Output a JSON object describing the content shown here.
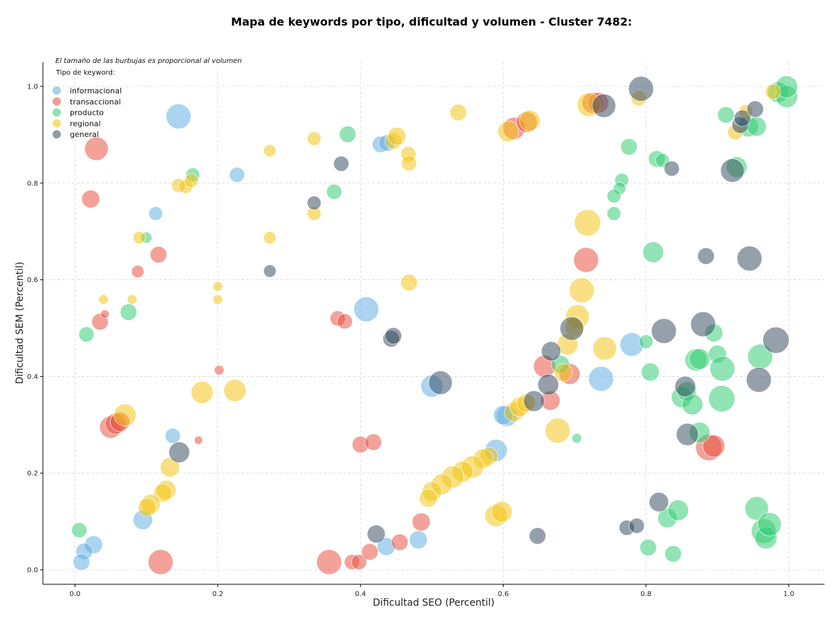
{
  "chart_data": {
    "type": "scatter",
    "title": "Mapa de keywords por tipo, dificultad y volumen - Cluster 7482:",
    "xlabel": "Dificultad SEO (Percentil)",
    "ylabel": "Dificultad SEM (Percentil)",
    "xlim": [
      -0.045,
      1.05
    ],
    "ylim": [
      -0.03,
      1.05
    ],
    "x_ticks": [
      "0.0",
      "0.2",
      "0.4",
      "0.6",
      "0.8",
      "1.0"
    ],
    "y_ticks": [
      "0.0",
      "0.2",
      "0.4",
      "0.6",
      "0.8",
      "1.0"
    ],
    "grid": true,
    "note": "El tamaño de las burbujas es proporcional al volumen",
    "legend": {
      "title": "Tipo de keyword:",
      "placement": "top-left",
      "entries": [
        {
          "name": "informacional",
          "color": "#5dade2"
        },
        {
          "name": "transaccional",
          "color": "#e74c3c"
        },
        {
          "name": "producto",
          "color": "#2ecc71"
        },
        {
          "name": "regional",
          "color": "#f1c40f"
        },
        {
          "name": "general",
          "color": "#34495e"
        }
      ]
    },
    "series": [
      {
        "name": "informacional",
        "color": "#5dade2",
        "points": [
          [
            0.145,
            0.938,
            18
          ],
          [
            0.227,
            0.817,
            11
          ],
          [
            0.113,
            0.737,
            10
          ],
          [
            0.408,
            0.539,
            18
          ],
          [
            0.428,
            0.88,
            12
          ],
          [
            0.437,
            0.883,
            12
          ],
          [
            0.5,
            0.38,
            16
          ],
          [
            0.605,
            0.318,
            15
          ],
          [
            0.59,
            0.247,
            16
          ],
          [
            0.481,
            0.062,
            13
          ],
          [
            0.436,
            0.048,
            13
          ],
          [
            0.137,
            0.277,
            11
          ],
          [
            0.095,
            0.103,
            14
          ],
          [
            0.026,
            0.052,
            13
          ],
          [
            0.013,
            0.038,
            12
          ],
          [
            0.009,
            0.016,
            12
          ],
          [
            0.737,
            0.395,
            18
          ],
          [
            0.78,
            0.466,
            17
          ],
          [
            0.6,
            0.32,
            14
          ]
        ]
      },
      {
        "name": "transaccional",
        "color": "#e74c3c",
        "points": [
          [
            0.03,
            0.871,
            17
          ],
          [
            0.022,
            0.767,
            13
          ],
          [
            0.117,
            0.652,
            12
          ],
          [
            0.088,
            0.617,
            9
          ],
          [
            0.035,
            0.513,
            12
          ],
          [
            0.042,
            0.529,
            6
          ],
          [
            0.05,
            0.295,
            16
          ],
          [
            0.057,
            0.302,
            15
          ],
          [
            0.063,
            0.306,
            14
          ],
          [
            0.12,
            0.016,
            18
          ],
          [
            0.173,
            0.268,
            6
          ],
          [
            0.202,
            0.413,
            7
          ],
          [
            0.368,
            0.52,
            11
          ],
          [
            0.378,
            0.514,
            11
          ],
          [
            0.4,
            0.259,
            12
          ],
          [
            0.418,
            0.264,
            12
          ],
          [
            0.356,
            0.016,
            18
          ],
          [
            0.388,
            0.016,
            11
          ],
          [
            0.398,
            0.016,
            11
          ],
          [
            0.413,
            0.037,
            12
          ],
          [
            0.455,
            0.057,
            12
          ],
          [
            0.485,
            0.099,
            13
          ],
          [
            0.615,
            0.913,
            16
          ],
          [
            0.633,
            0.926,
            15
          ],
          [
            0.658,
            0.421,
            16
          ],
          [
            0.666,
            0.35,
            14
          ],
          [
            0.693,
            0.405,
            15
          ],
          [
            0.716,
            0.641,
            18
          ],
          [
            0.725,
            0.966,
            15
          ],
          [
            0.733,
            0.966,
            15
          ],
          [
            0.888,
            0.253,
            19
          ],
          [
            0.895,
            0.256,
            16
          ]
        ]
      },
      {
        "name": "producto",
        "color": "#2ecc71",
        "points": [
          [
            0.382,
            0.901,
            12
          ],
          [
            0.363,
            0.782,
            11
          ],
          [
            0.165,
            0.817,
            10
          ],
          [
            0.1,
            0.687,
            8
          ],
          [
            0.075,
            0.533,
            12
          ],
          [
            0.016,
            0.487,
            11
          ],
          [
            0.006,
            0.082,
            11
          ],
          [
            0.703,
            0.272,
            7
          ],
          [
            0.776,
            0.875,
            12
          ],
          [
            0.766,
            0.806,
            10
          ],
          [
            0.763,
            0.789,
            9
          ],
          [
            0.755,
            0.773,
            10
          ],
          [
            0.755,
            0.737,
            10
          ],
          [
            0.81,
            0.657,
            15
          ],
          [
            0.815,
            0.85,
            12
          ],
          [
            0.823,
            0.847,
            10
          ],
          [
            0.8,
            0.472,
            10
          ],
          [
            0.806,
            0.409,
            13
          ],
          [
            0.85,
            0.357,
            15
          ],
          [
            0.857,
            0.369,
            14
          ],
          [
            0.865,
            0.342,
            15
          ],
          [
            0.87,
            0.434,
            16
          ],
          [
            0.875,
            0.436,
            15
          ],
          [
            0.875,
            0.284,
            15
          ],
          [
            0.895,
            0.49,
            13
          ],
          [
            0.9,
            0.446,
            13
          ],
          [
            0.907,
            0.416,
            18
          ],
          [
            0.906,
            0.354,
            19
          ],
          [
            0.955,
            0.127,
            17
          ],
          [
            0.965,
            0.08,
            18
          ],
          [
            0.968,
            0.066,
            16
          ],
          [
            0.973,
            0.094,
            17
          ],
          [
            0.96,
            0.441,
            18
          ],
          [
            0.912,
            0.941,
            12
          ],
          [
            0.943,
            0.917,
            15
          ],
          [
            0.955,
            0.917,
            14
          ],
          [
            0.927,
            0.833,
            15
          ],
          [
            0.985,
            0.988,
            15
          ],
          [
            0.997,
            0.979,
            16
          ],
          [
            0.997,
            0.999,
            16
          ],
          [
            0.83,
            0.107,
            14
          ],
          [
            0.845,
            0.123,
            15
          ],
          [
            0.803,
            0.046,
            12
          ],
          [
            0.838,
            0.033,
            12
          ],
          [
            0.68,
            0.425,
            13
          ]
        ]
      },
      {
        "name": "regional",
        "color": "#f1c40f",
        "points": [
          [
            0.273,
            0.867,
            9
          ],
          [
            0.335,
            0.892,
            10
          ],
          [
            0.145,
            0.795,
            10
          ],
          [
            0.155,
            0.793,
            10
          ],
          [
            0.163,
            0.805,
            10
          ],
          [
            0.09,
            0.687,
            9
          ],
          [
            0.273,
            0.687,
            9
          ],
          [
            0.335,
            0.737,
            10
          ],
          [
            0.2,
            0.586,
            7
          ],
          [
            0.2,
            0.559,
            7
          ],
          [
            0.04,
            0.559,
            7
          ],
          [
            0.08,
            0.559,
            7
          ],
          [
            0.07,
            0.32,
            16
          ],
          [
            0.178,
            0.367,
            16
          ],
          [
            0.224,
            0.371,
            16
          ],
          [
            0.133,
            0.212,
            14
          ],
          [
            0.128,
            0.165,
            14
          ],
          [
            0.123,
            0.159,
            13
          ],
          [
            0.106,
            0.136,
            14
          ],
          [
            0.101,
            0.129,
            13
          ],
          [
            0.446,
            0.887,
            12
          ],
          [
            0.451,
            0.897,
            13
          ],
          [
            0.467,
            0.86,
            11
          ],
          [
            0.468,
            0.841,
            11
          ],
          [
            0.468,
            0.594,
            12
          ],
          [
            0.537,
            0.946,
            12
          ],
          [
            0.607,
            0.907,
            15
          ],
          [
            0.637,
            0.929,
            15
          ],
          [
            0.72,
            0.962,
            17
          ],
          [
            0.79,
            0.975,
            11
          ],
          [
            0.718,
            0.718,
            19
          ],
          [
            0.71,
            0.578,
            18
          ],
          [
            0.704,
            0.524,
            17
          ],
          [
            0.7,
            0.502,
            14
          ],
          [
            0.69,
            0.466,
            15
          ],
          [
            0.684,
            0.408,
            13
          ],
          [
            0.676,
            0.288,
            18
          ],
          [
            0.742,
            0.458,
            17
          ],
          [
            0.615,
            0.326,
            14
          ],
          [
            0.623,
            0.337,
            14
          ],
          [
            0.632,
            0.345,
            13
          ],
          [
            0.58,
            0.235,
            13
          ],
          [
            0.572,
            0.23,
            14
          ],
          [
            0.557,
            0.213,
            16
          ],
          [
            0.543,
            0.203,
            15
          ],
          [
            0.529,
            0.192,
            16
          ],
          [
            0.514,
            0.177,
            15
          ],
          [
            0.5,
            0.162,
            14
          ],
          [
            0.495,
            0.148,
            13
          ],
          [
            0.59,
            0.112,
            16
          ],
          [
            0.598,
            0.12,
            15
          ],
          [
            0.94,
            0.948,
            10
          ],
          [
            0.925,
            0.905,
            11
          ],
          [
            0.978,
            0.989,
            11
          ]
        ]
      },
      {
        "name": "general",
        "color": "#34495e",
        "points": [
          [
            0.373,
            0.84,
            11
          ],
          [
            0.335,
            0.759,
            10
          ],
          [
            0.273,
            0.618,
            9
          ],
          [
            0.443,
            0.478,
            12
          ],
          [
            0.446,
            0.484,
            12
          ],
          [
            0.512,
            0.387,
            17
          ],
          [
            0.146,
            0.243,
            15
          ],
          [
            0.422,
            0.074,
            13
          ],
          [
            0.648,
            0.07,
            12
          ],
          [
            0.643,
            0.349,
            15
          ],
          [
            0.663,
            0.383,
            15
          ],
          [
            0.667,
            0.452,
            14
          ],
          [
            0.696,
            0.499,
            17
          ],
          [
            0.741,
            0.96,
            17
          ],
          [
            0.793,
            0.995,
            18
          ],
          [
            0.836,
            0.83,
            11
          ],
          [
            0.825,
            0.494,
            18
          ],
          [
            0.855,
            0.379,
            15
          ],
          [
            0.858,
            0.28,
            16
          ],
          [
            0.88,
            0.508,
            18
          ],
          [
            0.884,
            0.649,
            12
          ],
          [
            0.921,
            0.826,
            17
          ],
          [
            0.932,
            0.92,
            12
          ],
          [
            0.935,
            0.934,
            12
          ],
          [
            0.945,
            0.644,
            18
          ],
          [
            0.953,
            0.953,
            12
          ],
          [
            0.958,
            0.393,
            18
          ],
          [
            0.982,
            0.475,
            19
          ],
          [
            0.818,
            0.14,
            14
          ],
          [
            0.773,
            0.087,
            11
          ],
          [
            0.787,
            0.091,
            11
          ]
        ]
      }
    ]
  }
}
